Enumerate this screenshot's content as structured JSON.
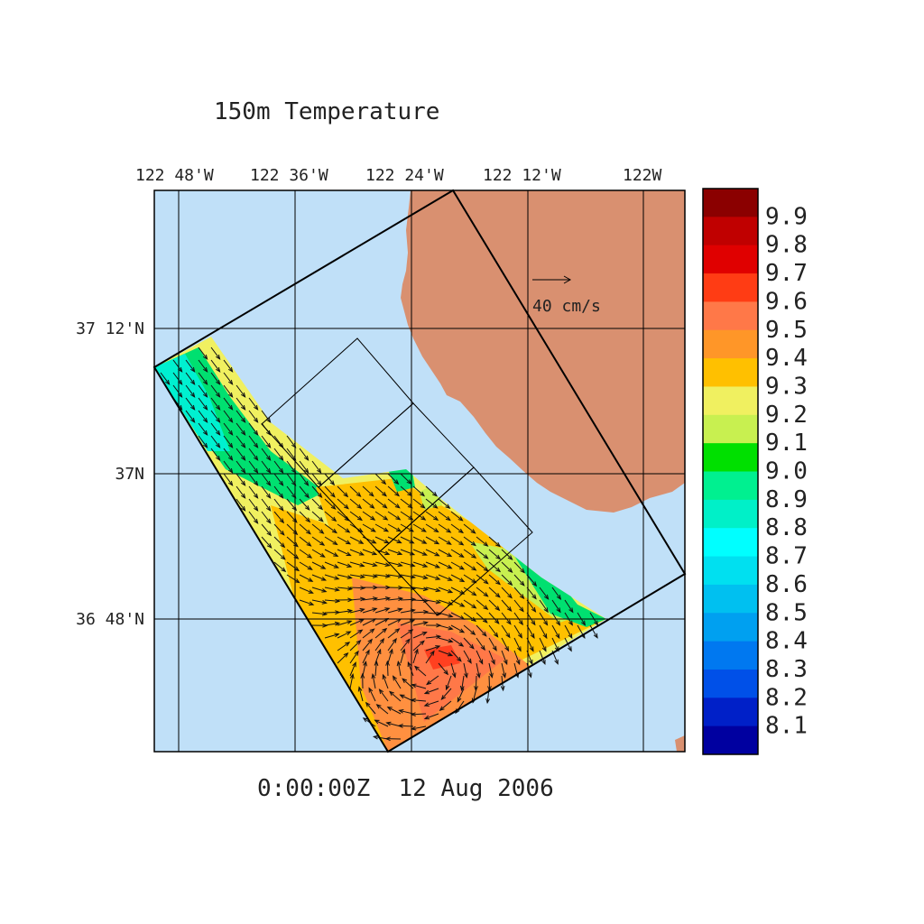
{
  "title": "150m Temperature",
  "timestamp": "0:00:00Z  12 Aug 2006",
  "longitude_labels": [
    "122 48'W",
    "122 36'W",
    "122 24'W",
    "122 12'W",
    "122W"
  ],
  "latitude_labels": [
    "37 12'N",
    "37N",
    "36 48'N"
  ],
  "scale_label": "40 cm/s",
  "colorbar": {
    "labels": [
      "9.9",
      "9.8",
      "9.7",
      "9.6",
      "9.5",
      "9.4",
      "9.3",
      "9.2",
      "9.1",
      "9.0",
      "8.9",
      "8.8",
      "8.7",
      "8.6",
      "8.5",
      "8.4",
      "8.3",
      "8.2",
      "8.1"
    ],
    "colors": [
      "#8b0000",
      "#c00000",
      "#e00000",
      "#ff3c14",
      "#ff7848",
      "#ff9628",
      "#ffc000",
      "#f0f060",
      "#c8f050",
      "#00e000",
      "#00f090",
      "#00f0c8",
      "#00ffff",
      "#00e0f0",
      "#00c0f0",
      "#00a0f0",
      "#0078f0",
      "#0050e8",
      "#0020c8",
      "#0000a0"
    ]
  },
  "colors": {
    "ocean": "#c0e0f8",
    "land": "#d99070"
  }
}
